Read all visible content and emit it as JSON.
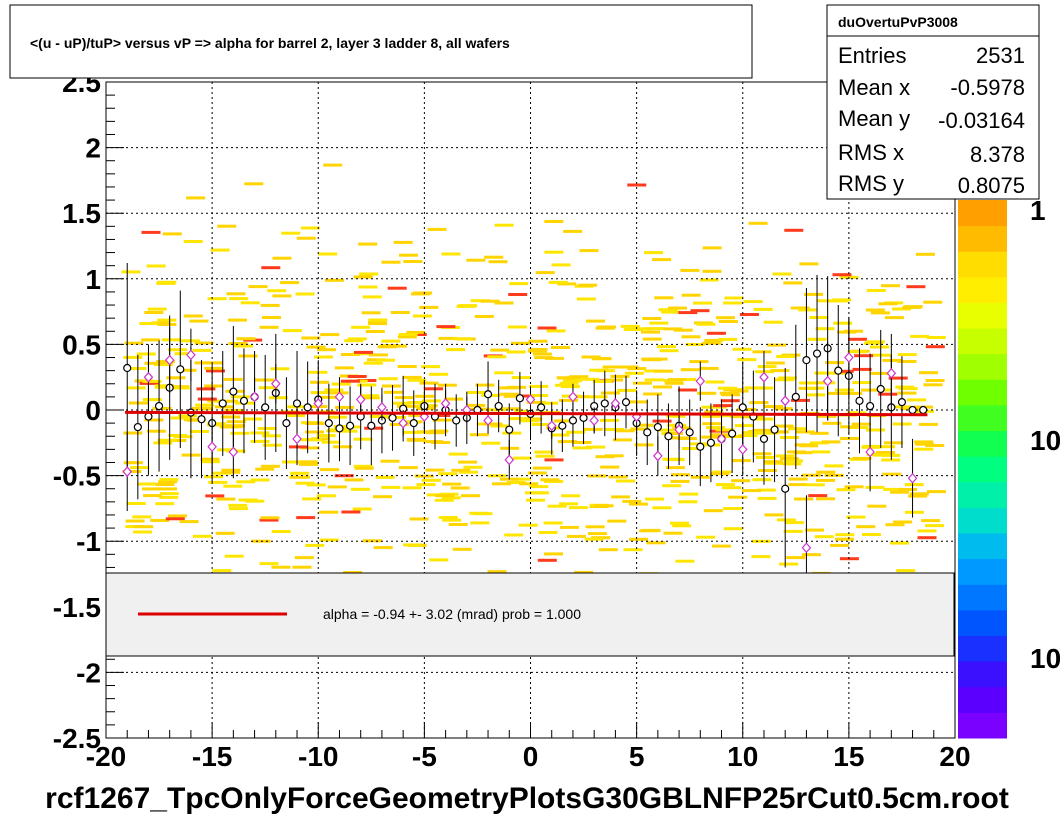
{
  "chart_data": {
    "type": "scatter",
    "title": "<(u - uP)/tuP> versus   vP => alpha for barrel 2, layer 3 ladder 8, all wafers",
    "xlabel": "",
    "ylabel": "",
    "footer": "rcf1267_TpcOnlyForceGeometryPlotsG30GBLNFP25rCut0.5cm.root",
    "xlim": [
      -20,
      20
    ],
    "ylim": [
      -2.5,
      2.5
    ],
    "x_ticks": [
      "-20",
      "-15",
      "-10",
      "-5",
      "0",
      "5",
      "10",
      "15",
      "20"
    ],
    "y_ticks": [
      "-2.5",
      "-2",
      "-1.5",
      "-1",
      "-0.5",
      "0",
      "0.5",
      "1",
      "1.5",
      "2",
      "2.5"
    ],
    "grid": true,
    "stats": {
      "name": "duOvertuPvP3008",
      "rows": [
        {
          "label": "Entries",
          "value": "2531"
        },
        {
          "label": "Mean x",
          "value": "-0.5978"
        },
        {
          "label": "Mean y",
          "value": "-0.03164"
        },
        {
          "label": "RMS x",
          "value": "8.378"
        },
        {
          "label": "RMS y",
          "value": "0.8075"
        }
      ]
    },
    "palette_labels": [
      "1",
      "10",
      "10"
    ],
    "fit_legend": "alpha =   -0.94 +-  3.02 (mrad) prob = 1.000",
    "fit_line": {
      "x": [
        -19.1,
        18.7
      ],
      "y": [
        -0.018,
        -0.036
      ],
      "color": "#dd0000"
    },
    "series": [
      {
        "marker": "circle-black",
        "x": [
          -19.0,
          -18.5,
          -18.0,
          -17.5,
          -17.0,
          -16.5,
          -16.0,
          -15.5,
          -15.0,
          -14.5,
          -14.0,
          -13.5,
          -13.0,
          -12.5,
          -12.0,
          -11.5,
          -11.0,
          -10.5,
          -10.0,
          -9.5,
          -9.0,
          -8.5,
          -8.0,
          -7.5,
          -7.0,
          -6.5,
          -6.0,
          -5.5,
          -5.0,
          -4.5,
          -4.0,
          -3.5,
          -3.0,
          -2.5,
          -2.0,
          -1.5,
          -1.0,
          -0.5,
          0.0,
          0.5,
          1.0,
          1.5,
          2.0,
          2.5,
          3.0,
          3.5,
          4.0,
          4.5,
          5.0,
          5.5,
          6.0,
          6.5,
          7.0,
          7.5,
          8.0,
          8.5,
          9.0,
          9.5,
          10.0,
          10.5,
          11.0,
          11.5,
          12.0,
          12.5,
          13.0,
          13.5,
          14.0,
          14.5,
          15.0,
          15.5,
          16.0,
          16.5,
          17.0,
          17.5,
          18.0,
          18.5
        ],
        "y": [
          0.32,
          -0.13,
          -0.05,
          0.03,
          0.17,
          0.31,
          -0.02,
          -0.07,
          -0.1,
          0.05,
          0.14,
          0.07,
          0.1,
          0.02,
          0.13,
          -0.1,
          0.05,
          0.02,
          0.08,
          -0.1,
          -0.14,
          -0.12,
          -0.05,
          -0.12,
          -0.08,
          -0.06,
          0.01,
          -0.1,
          0.03,
          -0.05,
          0.0,
          -0.08,
          -0.06,
          0.0,
          0.12,
          0.03,
          -0.15,
          0.09,
          -0.03,
          0.02,
          -0.14,
          -0.12,
          -0.08,
          -0.06,
          0.03,
          0.05,
          0.02,
          0.06,
          -0.1,
          -0.17,
          -0.13,
          -0.2,
          -0.12,
          -0.17,
          -0.28,
          -0.25,
          -0.22,
          -0.18,
          0.02,
          -0.05,
          -0.22,
          -0.15,
          -0.6,
          0.1,
          0.38,
          0.43,
          0.47,
          0.3,
          0.26,
          0.07,
          0.03,
          0.16,
          0.02,
          0.06,
          0.0,
          0.0
        ],
        "err": [
          0.8,
          0.55,
          0.45,
          0.5,
          0.55,
          0.6,
          0.5,
          0.45,
          0.45,
          0.4,
          0.5,
          0.4,
          0.35,
          0.4,
          0.45,
          0.35,
          0.4,
          0.35,
          0.3,
          0.3,
          0.25,
          0.3,
          0.25,
          0.3,
          0.25,
          0.25,
          0.25,
          0.25,
          0.2,
          0.25,
          0.2,
          0.2,
          0.2,
          0.2,
          0.25,
          0.2,
          0.2,
          0.2,
          0.2,
          0.2,
          0.2,
          0.2,
          0.2,
          0.2,
          0.2,
          0.25,
          0.25,
          0.2,
          0.25,
          0.25,
          0.25,
          0.25,
          0.3,
          0.25,
          0.3,
          0.3,
          0.3,
          0.3,
          0.35,
          0.35,
          0.35,
          0.4,
          0.6,
          0.55,
          0.55,
          0.6,
          0.55,
          0.5,
          0.45,
          0.4,
          0.4,
          0.45,
          0.4,
          0.35,
          0.0,
          0.0
        ]
      },
      {
        "marker": "diamond-violet",
        "x": [
          -19.0,
          -18.0,
          -17.0,
          -16.0,
          -15.0,
          -14.0,
          -13.0,
          -12.0,
          -11.0,
          -10.0,
          -9.0,
          -8.0,
          -7.0,
          -6.0,
          -5.0,
          -4.0,
          -3.0,
          -2.0,
          -1.0,
          0.0,
          1.0,
          2.0,
          3.0,
          4.0,
          5.0,
          6.0,
          7.0,
          8.0,
          9.0,
          10.0,
          11.0,
          12.0,
          13.0,
          14.0,
          15.0,
          16.0,
          17.0,
          18.0
        ],
        "y": [
          -0.47,
          0.25,
          0.38,
          0.42,
          -0.28,
          -0.32,
          0.1,
          0.2,
          -0.22,
          0.05,
          0.1,
          0.08,
          0.02,
          -0.1,
          -0.05,
          0.05,
          0.0,
          -0.08,
          -0.38,
          0.08,
          -0.12,
          0.1,
          -0.08,
          0.05,
          -0.05,
          -0.35,
          -0.15,
          0.22,
          -0.22,
          -0.3,
          0.25,
          0.07,
          -1.05,
          0.22,
          0.4,
          -0.32,
          0.28,
          -0.52
        ],
        "err": [
          0.3,
          0.25,
          0.25,
          0.2,
          0.2,
          0.2,
          0.15,
          0.15,
          0.2,
          0.15,
          0.15,
          0.1,
          0.1,
          0.1,
          0.1,
          0.1,
          0.1,
          0.1,
          0.15,
          0.1,
          0.1,
          0.1,
          0.1,
          0.1,
          0.1,
          0.15,
          0.15,
          0.15,
          0.15,
          0.2,
          0.2,
          0.25,
          0.4,
          0.3,
          0.3,
          0.3,
          0.3,
          0.3
        ]
      }
    ]
  }
}
